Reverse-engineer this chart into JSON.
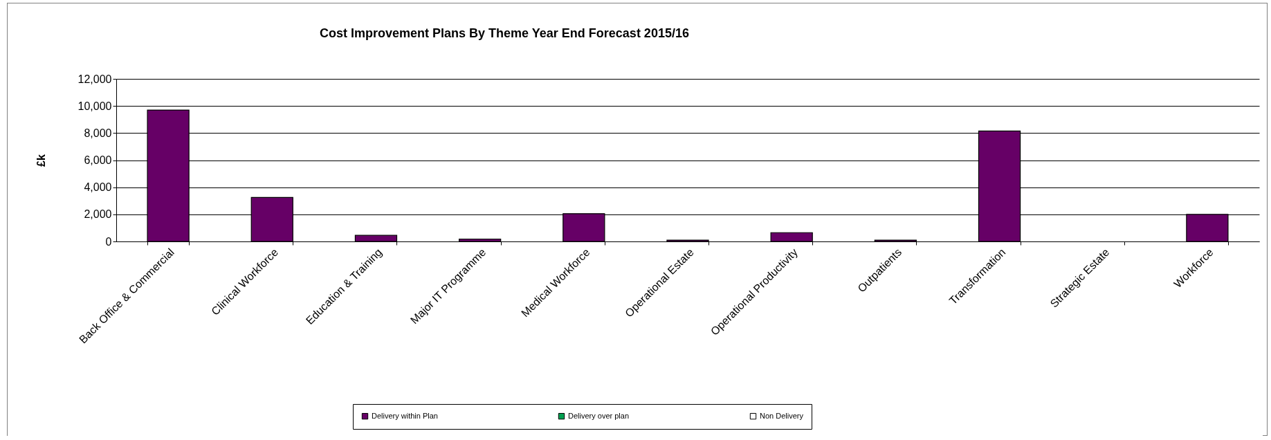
{
  "chart_data": {
    "type": "bar",
    "title": "Cost Improvement Plans By Theme Year End Forecast 2015/16",
    "ylabel": "£k",
    "categories": [
      "Back Office & Commercial",
      "Clinical Workforce",
      "Education & Training",
      "Major IT Programme",
      "Medical Workforce",
      "Operational Estate",
      "Operational Productivity",
      "Outpatients",
      "Transformation",
      "Strategic Estate",
      "Workforce"
    ],
    "series": [
      {
        "name": "Delivery within Plan",
        "color": "#660066",
        "values": [
          9700,
          3250,
          450,
          180,
          2050,
          100,
          650,
          100,
          8150,
          0,
          2000
        ]
      },
      {
        "name": "Delivery over plan",
        "color": "#00a050",
        "values": [
          0,
          0,
          0,
          0,
          0,
          0,
          0,
          0,
          0,
          0,
          0
        ]
      },
      {
        "name": "Non Delivery",
        "color": "#ffffff",
        "values": [
          0,
          0,
          0,
          0,
          0,
          0,
          0,
          0,
          0,
          0,
          0
        ]
      }
    ],
    "ylim": [
      0,
      12000
    ],
    "yticks": [
      0,
      {
        "value": 2000,
        "label": "2,000"
      },
      {
        "value": 4000,
        "label": "4,000"
      },
      {
        "value": 6000,
        "label": "6,000"
      },
      {
        "value": 8000,
        "label": "8,000"
      },
      {
        "value": 10000,
        "label": "10,000"
      },
      {
        "value": 12000,
        "label": "12,000"
      }
    ],
    "grid": "y",
    "legend": "bottom"
  }
}
